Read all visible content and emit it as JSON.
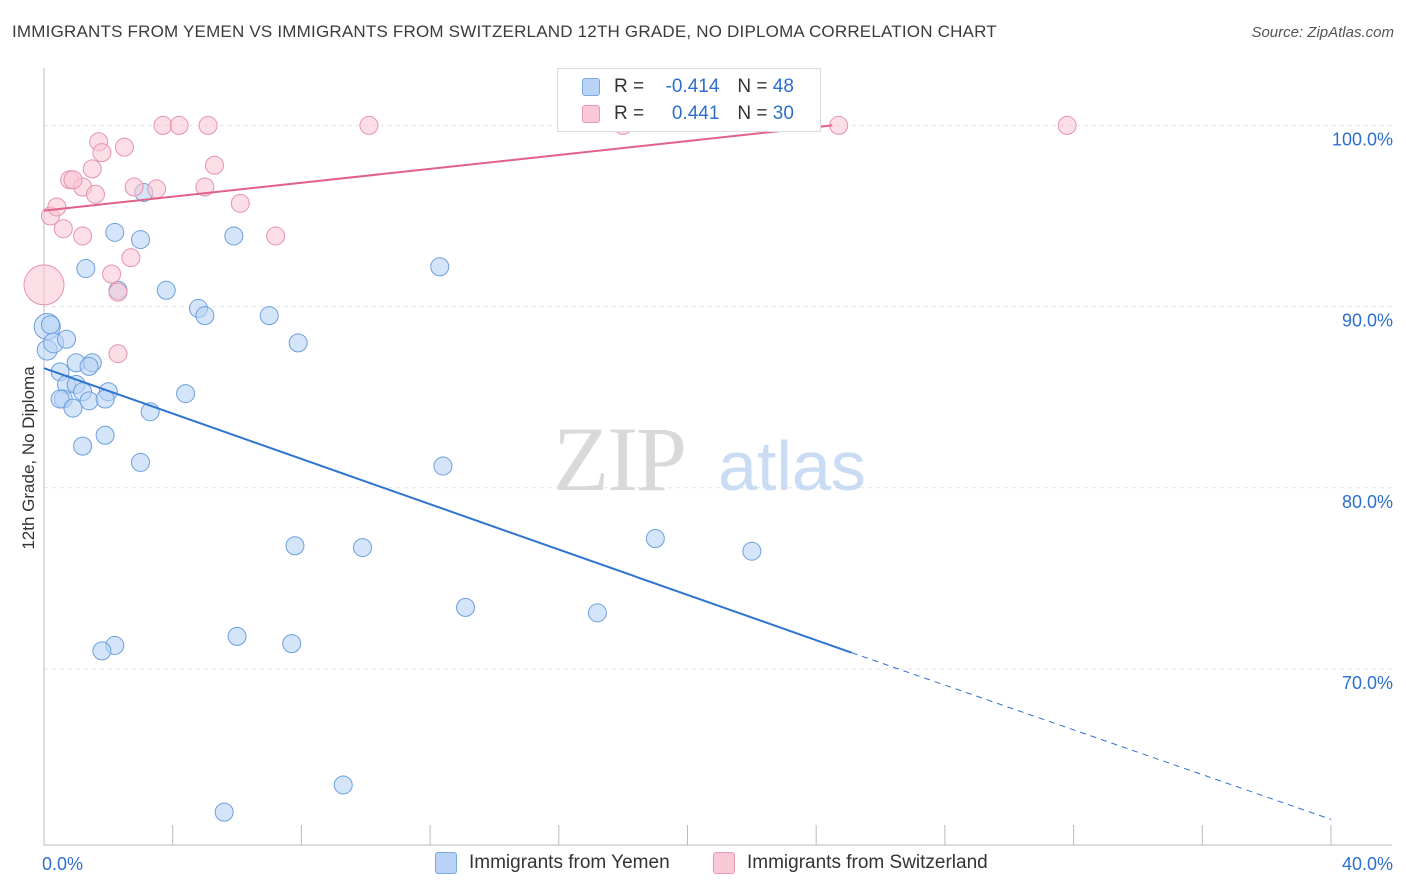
{
  "title": "IMMIGRANTS FROM YEMEN VS IMMIGRANTS FROM SWITZERLAND 12TH GRADE, NO DIPLOMA CORRELATION CHART",
  "source": "Source: ZipAtlas.com",
  "watermark": {
    "zip": "ZIP",
    "atlas": "atlas"
  },
  "legend": {
    "rows": [
      {
        "r_label": "R =",
        "r_value": "-0.414",
        "n_label": "N =",
        "n_value": "48"
      },
      {
        "r_label": "R =",
        "r_value": "0.441",
        "n_label": "N =",
        "n_value": "30"
      }
    ]
  },
  "bottom_legend": {
    "yemen": "Immigrants from Yemen",
    "switzerland": "Immigrants from Switzerland"
  },
  "colors": {
    "blue_fill": "#b8d3f5",
    "blue_stroke": "#6d9fdc",
    "blue_line": "#2f74d0",
    "pink_fill": "#f9c8d6",
    "pink_stroke": "#e793ad",
    "pink_line": "#e2608a",
    "axis_label": "#2d6fcf",
    "grid": "#e2e2e2"
  },
  "chart_data": {
    "type": "scatter",
    "xlabel": "",
    "ylabel": "12th Grade, No Diploma",
    "xlim": [
      0,
      40
    ],
    "ylim": [
      61.5,
      103.5
    ],
    "x_tick_labels": [
      "0.0%",
      "40.0%"
    ],
    "y_ticks": [
      70,
      80,
      90,
      100
    ],
    "y_tick_labels": [
      "70.0%",
      "80.0%",
      "90.0%",
      "100.0%"
    ],
    "grid": true,
    "series": [
      {
        "name": "Immigrants from Yemen",
        "color": "#b8d3f5",
        "points": [
          [
            0.1,
            88.9,
            13
          ],
          [
            0.1,
            87.6,
            10
          ],
          [
            0.3,
            88.0,
            10
          ],
          [
            0.7,
            88.2,
            9
          ],
          [
            0.5,
            86.4,
            9
          ],
          [
            0.7,
            85.7,
            9
          ],
          [
            0.6,
            84.9,
            9
          ],
          [
            0.5,
            84.9,
            9
          ],
          [
            1.0,
            86.9,
            9
          ],
          [
            1.5,
            86.9,
            9
          ],
          [
            1.4,
            86.7,
            9
          ],
          [
            1.0,
            85.7,
            9
          ],
          [
            1.2,
            85.3,
            9
          ],
          [
            2.0,
            85.3,
            9
          ],
          [
            1.4,
            84.8,
            9
          ],
          [
            1.9,
            84.9,
            9
          ],
          [
            0.9,
            84.4,
            9
          ],
          [
            3.3,
            84.2,
            9
          ],
          [
            4.4,
            85.2,
            9
          ],
          [
            1.9,
            82.9,
            9
          ],
          [
            1.2,
            82.3,
            9
          ],
          [
            3.0,
            81.4,
            9
          ],
          [
            2.2,
            94.1,
            9
          ],
          [
            3.0,
            93.7,
            9
          ],
          [
            1.3,
            92.1,
            9
          ],
          [
            2.3,
            90.9,
            9
          ],
          [
            3.8,
            90.9,
            9
          ],
          [
            4.8,
            89.9,
            9
          ],
          [
            5.0,
            89.5,
            9
          ],
          [
            7.0,
            89.5,
            9
          ],
          [
            7.9,
            88.0,
            9
          ],
          [
            3.1,
            96.3,
            9
          ],
          [
            5.9,
            93.9,
            9
          ],
          [
            12.3,
            92.2,
            9
          ],
          [
            12.4,
            81.2,
            9
          ],
          [
            7.8,
            76.8,
            9
          ],
          [
            9.9,
            76.7,
            9
          ],
          [
            19.0,
            77.2,
            9
          ],
          [
            22.0,
            76.5,
            9
          ],
          [
            13.1,
            73.4,
            9
          ],
          [
            17.2,
            73.1,
            9
          ],
          [
            6.0,
            71.8,
            9
          ],
          [
            7.7,
            71.4,
            9
          ],
          [
            2.2,
            71.3,
            9
          ],
          [
            1.8,
            71.0,
            9
          ],
          [
            9.3,
            63.6,
            9
          ],
          [
            5.6,
            62.1,
            9
          ],
          [
            0.2,
            89.0,
            9
          ]
        ]
      },
      {
        "name": "Immigrants from Switzerland",
        "color": "#f9c8d6",
        "points": [
          [
            0.0,
            91.2,
            20
          ],
          [
            0.2,
            95.0,
            9
          ],
          [
            0.4,
            95.5,
            9
          ],
          [
            0.6,
            94.3,
            9
          ],
          [
            0.8,
            97.0,
            9
          ],
          [
            1.2,
            96.6,
            9
          ],
          [
            0.9,
            97.0,
            9
          ],
          [
            1.5,
            97.6,
            9
          ],
          [
            1.6,
            96.2,
            9
          ],
          [
            1.7,
            99.1,
            9
          ],
          [
            1.8,
            98.5,
            9
          ],
          [
            2.5,
            98.8,
            9
          ],
          [
            1.2,
            93.9,
            9
          ],
          [
            2.1,
            91.8,
            9
          ],
          [
            2.3,
            90.8,
            9
          ],
          [
            2.7,
            92.7,
            9
          ],
          [
            2.3,
            87.4,
            9
          ],
          [
            2.8,
            96.6,
            9
          ],
          [
            3.5,
            96.5,
            9
          ],
          [
            3.7,
            100.0,
            9
          ],
          [
            4.2,
            100.0,
            9
          ],
          [
            5.1,
            100.0,
            9
          ],
          [
            5.0,
            96.6,
            9
          ],
          [
            5.3,
            97.8,
            9
          ],
          [
            6.1,
            95.7,
            9
          ],
          [
            7.2,
            93.9,
            9
          ],
          [
            10.1,
            100.0,
            9
          ],
          [
            18.0,
            100.0,
            9
          ],
          [
            24.7,
            100.0,
            9
          ],
          [
            31.8,
            100.0,
            9
          ]
        ]
      }
    ],
    "trend_lines": [
      {
        "series": "Immigrants from Yemen",
        "solid": [
          [
            0,
            86.6
          ],
          [
            25.1,
            70.9
          ]
        ],
        "dashed": [
          [
            25.1,
            70.9
          ],
          [
            40,
            61.7
          ]
        ]
      },
      {
        "series": "Immigrants from Switzerland",
        "solid": [
          [
            0,
            95.3
          ],
          [
            24.5,
            100.0
          ]
        ]
      }
    ]
  }
}
